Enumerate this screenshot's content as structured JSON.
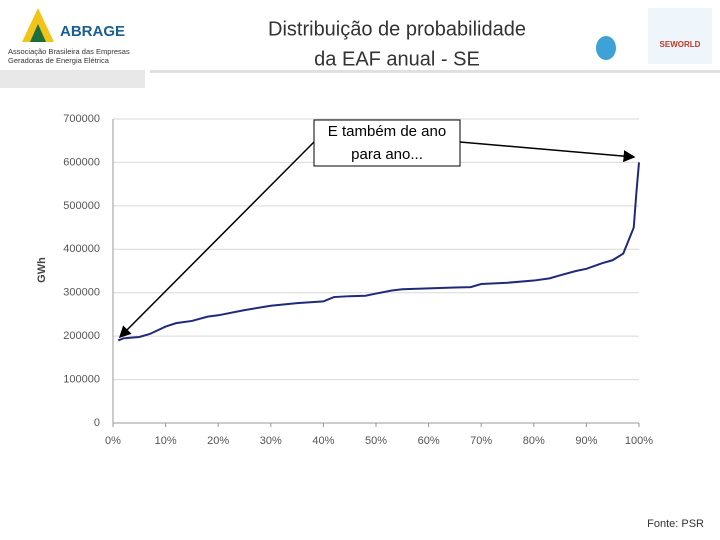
{
  "logos": {
    "left_name": "ABRAGE",
    "left_line1": "Associação Brasileira das Empresas",
    "left_line2": "Geradoras de Energia Elétrica",
    "right_name": "SEWORLD"
  },
  "source": "Fonte: PSR",
  "chart_data": {
    "type": "line",
    "title": [
      "Distribuição de probabilidade",
      "da EAF anual - SE"
    ],
    "ylabel": "GWh",
    "annotation": [
      "E também de ano",
      "para ano..."
    ],
    "x": [
      1,
      2,
      5,
      7,
      10,
      12,
      15,
      18,
      20,
      25,
      30,
      35,
      40,
      42,
      45,
      48,
      50,
      53,
      55,
      60,
      65,
      68,
      70,
      75,
      80,
      83,
      85,
      88,
      90,
      93,
      95,
      97,
      98,
      99,
      99.5,
      100
    ],
    "series": [
      {
        "name": "EAF",
        "color": "#1f2a78",
        "values": [
          190000,
          195000,
          198000,
          205000,
          222000,
          230000,
          235000,
          245000,
          248000,
          260000,
          270000,
          276000,
          280000,
          290000,
          292000,
          293000,
          298000,
          305000,
          308000,
          310000,
          312000,
          313000,
          320000,
          323000,
          328000,
          333000,
          340000,
          350000,
          355000,
          368000,
          375000,
          390000,
          420000,
          450000,
          530000,
          600000
        ]
      }
    ],
    "xlim": [
      0,
      100
    ],
    "xticks": [
      {
        "value": 0,
        "label": "0%"
      },
      {
        "value": 10,
        "label": "10%"
      },
      {
        "value": 20,
        "label": "20%"
      },
      {
        "value": 30,
        "label": "30%"
      },
      {
        "value": 40,
        "label": "40%"
      },
      {
        "value": 50,
        "label": "50%"
      },
      {
        "value": 60,
        "label": "60%"
      },
      {
        "value": 70,
        "label": "70%"
      },
      {
        "value": 80,
        "label": "80%"
      },
      {
        "value": 90,
        "label": "90%"
      },
      {
        "value": 100,
        "label": "100%"
      }
    ],
    "ylim": [
      0,
      700000
    ],
    "yticks": [
      0,
      100000,
      200000,
      300000,
      400000,
      500000,
      600000,
      700000
    ],
    "grid": true
  }
}
